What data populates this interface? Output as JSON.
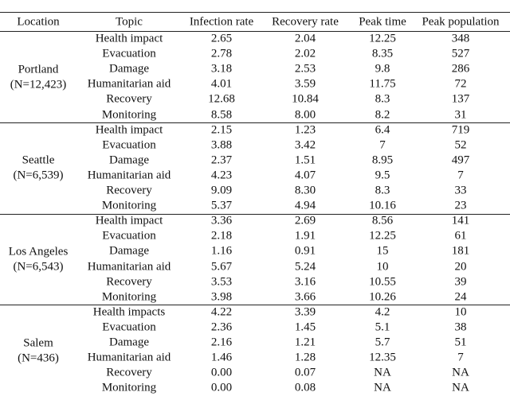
{
  "table": {
    "header": [
      "Location",
      "Topic",
      "Infection rate",
      "Recovery rate",
      "Peak time",
      "Peak population"
    ],
    "groups": [
      {
        "location": "Portland",
        "n": "(N=12,423)",
        "rows": [
          [
            "Health impact",
            "2.65",
            "2.04",
            "12.25",
            "348"
          ],
          [
            "Evacuation",
            "2.78",
            "2.02",
            "8.35",
            "527"
          ],
          [
            "Damage",
            "3.18",
            "2.53",
            "9.8",
            "286"
          ],
          [
            "Humanitarian aid",
            "4.01",
            "3.59",
            "11.75",
            "72"
          ],
          [
            "Recovery",
            "12.68",
            "10.84",
            "8.3",
            "137"
          ],
          [
            "Monitoring",
            "8.58",
            "8.00",
            "8.2",
            "31"
          ]
        ]
      },
      {
        "location": "Seattle",
        "n": "(N=6,539)",
        "rows": [
          [
            "Health impact",
            "2.15",
            "1.23",
            "6.4",
            "719"
          ],
          [
            "Evacuation",
            "3.88",
            "3.42",
            "7",
            "52"
          ],
          [
            "Damage",
            "2.37",
            "1.51",
            "8.95",
            "497"
          ],
          [
            "Humanitarian aid",
            "4.23",
            "4.07",
            "9.5",
            "7"
          ],
          [
            "Recovery",
            "9.09",
            "8.30",
            "8.3",
            "33"
          ],
          [
            "Monitoring",
            "5.37",
            "4.94",
            "10.16",
            "23"
          ]
        ]
      },
      {
        "location": "Los Angeles",
        "n": "(N=6,543)",
        "rows": [
          [
            "Health impact",
            "3.36",
            "2.69",
            "8.56",
            "141"
          ],
          [
            "Evacuation",
            "2.18",
            "1.91",
            "12.25",
            "61"
          ],
          [
            "Damage",
            "1.16",
            "0.91",
            "15",
            "181"
          ],
          [
            "Humanitarian aid",
            "5.67",
            "5.24",
            "10",
            "20"
          ],
          [
            "Recovery",
            "3.53",
            "3.16",
            "10.55",
            "39"
          ],
          [
            "Monitoring",
            "3.98",
            "3.66",
            "10.26",
            "24"
          ]
        ]
      },
      {
        "location": "Salem",
        "n": "(N=436)",
        "rows": [
          [
            "Health impacts",
            "4.22",
            "3.39",
            "4.2",
            "10"
          ],
          [
            "Evacuation",
            "2.36",
            "1.45",
            "5.1",
            "38"
          ],
          [
            "Damage",
            "2.16",
            "1.21",
            "5.7",
            "51"
          ],
          [
            "Humanitarian aid",
            "1.46",
            "1.28",
            "12.35",
            "7"
          ],
          [
            "Recovery",
            "0.00",
            "0.07",
            "NA",
            "NA"
          ],
          [
            "Monitoring",
            "0.00",
            "0.08",
            "NA",
            "NA"
          ]
        ]
      }
    ]
  }
}
